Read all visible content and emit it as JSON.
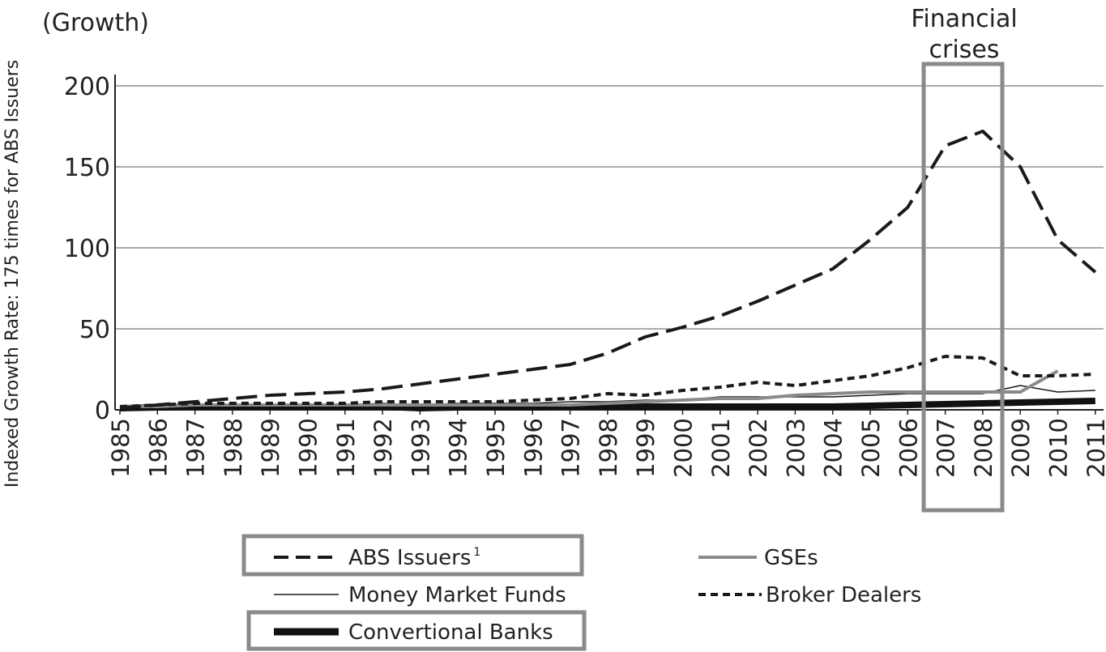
{
  "chart_data": {
    "type": "line",
    "title": "",
    "top_left_label": "(Growth)",
    "ylabel": "Indexed Growth Rate: 175 times for ABS Issuers",
    "xlabel": "",
    "ylim": [
      0,
      200
    ],
    "yticks": [
      "0",
      "50",
      "100",
      "150",
      "200"
    ],
    "grid": "horizontal",
    "x": [
      "1985",
      "1986",
      "1987",
      "1988",
      "1989",
      "1990",
      "1991",
      "1992",
      "1993",
      "1994",
      "1995",
      "1996",
      "1997",
      "1998",
      "1999",
      "2000",
      "2001",
      "2002",
      "2003",
      "2004",
      "2005",
      "2006",
      "2007",
      "2008",
      "2009",
      "2010",
      "2011"
    ],
    "highlight": {
      "label": "Financial crises",
      "label_lines": [
        "Financial",
        "crises"
      ],
      "from": "2007",
      "to": "2008"
    },
    "legend_placement": "bottom",
    "series": [
      {
        "name": "ABS Issuers",
        "superscript": "1",
        "style": "long-dash",
        "color": "#1a1a1a",
        "values": [
          1,
          3,
          5,
          7,
          9,
          10,
          11,
          13,
          16,
          19,
          22,
          25,
          28,
          35,
          45,
          51,
          58,
          67,
          77,
          87,
          105,
          125,
          163,
          172,
          150,
          105,
          85
        ]
      },
      {
        "name": "Money Market Funds",
        "style": "thin-solid",
        "color": "#1a1a1a",
        "values": [
          2,
          3,
          3,
          3,
          3,
          3,
          3,
          4,
          3,
          4,
          4,
          4,
          5,
          5,
          6,
          6,
          8,
          8,
          8,
          8,
          9,
          10,
          10,
          10,
          15,
          11,
          12
        ]
      },
      {
        "name": "Convertional Banks",
        "style": "thick-solid",
        "color": "#111111",
        "values": [
          1,
          1.5,
          2,
          2,
          2,
          2,
          2,
          2,
          1,
          1.5,
          1.5,
          1.5,
          2,
          2,
          2,
          2,
          2,
          2,
          2,
          2,
          2.5,
          3,
          3.5,
          4,
          4.5,
          5,
          5.5
        ]
      },
      {
        "name": "GSEs",
        "style": "gray-solid",
        "color": "#8a8a8a",
        "values": [
          2,
          2,
          3,
          3,
          3,
          3,
          3,
          3,
          3,
          3,
          3,
          3,
          3,
          4,
          5,
          6,
          7,
          7,
          9,
          10,
          11,
          11,
          11,
          11,
          11,
          24,
          null
        ]
      },
      {
        "name": "Broker Dealers",
        "style": "short-dash",
        "color": "#1a1a1a",
        "values": [
          2,
          3,
          4,
          4,
          4,
          4,
          4,
          5,
          5,
          5,
          5,
          6,
          7,
          10,
          9,
          12,
          14,
          17,
          15,
          18,
          21,
          26,
          33,
          32,
          21,
          21,
          22
        ]
      }
    ]
  },
  "legend": {
    "abs": "ABS Issuers",
    "abs_sup": "1",
    "mmf": "Money Market Funds",
    "banks": "Convertional Banks",
    "gses": "GSEs",
    "broker": "Broker Dealers"
  }
}
